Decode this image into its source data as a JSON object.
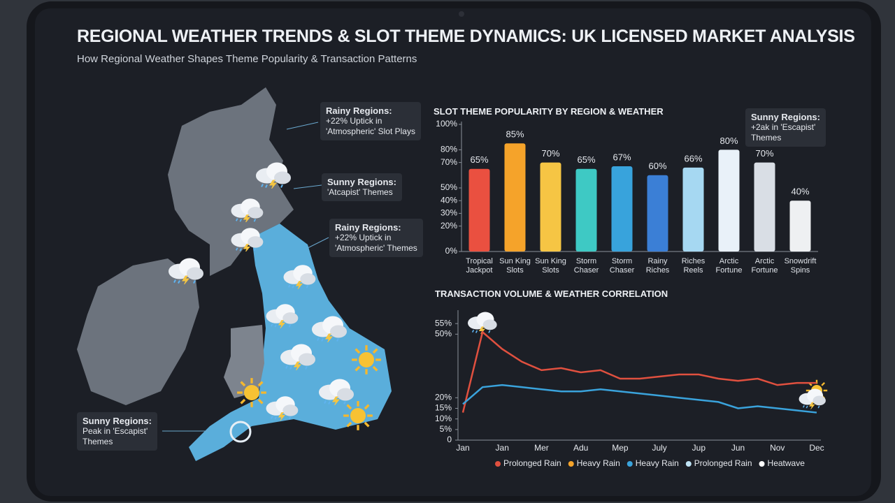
{
  "header": {
    "title": "REGIONAL WEATHER TRENDS & SLOT THEME DYNAMICS: UK LICENSED MARKET ANALYSIS",
    "subtitle": "How Regional Weather Shapes Theme Popularity & Transaction Patterns"
  },
  "map": {
    "callouts": [
      {
        "title": "Rainy Regions:",
        "lines": [
          "+22% Uptick in",
          "'Atmospheric' Slot Plays"
        ]
      },
      {
        "title": "Sunny Regions:",
        "lines": [
          "'Atcapist' Themes"
        ]
      },
      {
        "title": "Rainy Regions:",
        "lines": [
          "+22% Uptick in",
          "'Atmospheric' Themes"
        ]
      },
      {
        "title": "Sunny Regions:",
        "lines": [
          "Peak in 'Escapist'",
          "Themes"
        ]
      }
    ]
  },
  "chart_data": [
    {
      "type": "bar",
      "title": "SLOT THEME POPULARITY BY REGION & WEATHER",
      "categories": [
        "Tropical Jackpot",
        "Sun King Slots",
        "Sun King Slots",
        "Storm Chaser",
        "Storm Chaser",
        "Rainy Riches",
        "Riches Reels",
        "Arctic Fortune",
        "Arctic Fortune",
        "Snowdrift Spins"
      ],
      "values": [
        65,
        85,
        70,
        65,
        67,
        60,
        66,
        80,
        70,
        40
      ],
      "value_labels": [
        "65%",
        "85%",
        "70%",
        "65%",
        "67%",
        "60%",
        "66%",
        "80%",
        "70%",
        "40%"
      ],
      "colors": [
        "#ea5040",
        "#f5a32a",
        "#f6c544",
        "#3ec9c4",
        "#38a3dc",
        "#3b7fd6",
        "#a6d8f2",
        "#e9f1f9",
        "#d9dee5",
        "#eef0f2"
      ],
      "ylim": [
        0,
        100
      ],
      "yticks": [
        {
          "value": 100,
          "label": "100%"
        },
        {
          "value": 80,
          "label": "80%"
        },
        {
          "value": 70,
          "label": "70%"
        },
        {
          "value": 50,
          "label": "50%"
        },
        {
          "value": 40,
          "label": "40%"
        },
        {
          "value": 30,
          "label": "30%"
        },
        {
          "value": 20,
          "label": "20%"
        },
        {
          "value": 0,
          "label": "0%"
        }
      ],
      "annotation": {
        "title": "Sunny Regions:",
        "lines": [
          "+2ak in 'Escapist'",
          "Themes"
        ]
      }
    },
    {
      "type": "line",
      "title": "TRANSACTION VOLUME & WEATHER CORRELATION",
      "categories": [
        "Jan",
        null,
        "Jan",
        null,
        "Mer",
        null,
        "Adu",
        null,
        "Mep",
        null,
        "July",
        null,
        "Jup",
        null,
        "Jun",
        null,
        "Nov",
        null,
        "Dec"
      ],
      "series": [
        {
          "color": "#e0503f",
          "values": [
            13,
            51,
            43,
            37,
            33,
            34,
            32,
            33,
            29,
            29,
            30,
            31,
            31,
            29,
            28,
            29,
            26,
            27,
            27
          ]
        },
        {
          "color": "#3aa3dc",
          "values": [
            17,
            25,
            26,
            25,
            24,
            23,
            23,
            24,
            23,
            22,
            21,
            20,
            19,
            18,
            15,
            16,
            15,
            14,
            13
          ]
        }
      ],
      "legend": [
        {
          "name": "Prolonged Rain",
          "color": "#e0503f"
        },
        {
          "name": "Heavy Rain",
          "color": "#f5a32a"
        },
        {
          "name": "Heavy Rain",
          "color": "#3aa3dc"
        },
        {
          "name": "Prolonged Rain",
          "color": "#bfe3f5"
        },
        {
          "name": "Heatwave",
          "color": "#ffffff"
        }
      ],
      "ylim": [
        0,
        60
      ],
      "yticks": [
        {
          "value": 50,
          "label": "50%"
        },
        {
          "value": 55,
          "label": "55%"
        },
        {
          "value": 15,
          "label": "15%"
        },
        {
          "value": 20,
          "label": "20%"
        },
        {
          "value": 10,
          "label": "10%"
        },
        {
          "value": 5,
          "label": "5%"
        },
        0
      ]
    }
  ]
}
